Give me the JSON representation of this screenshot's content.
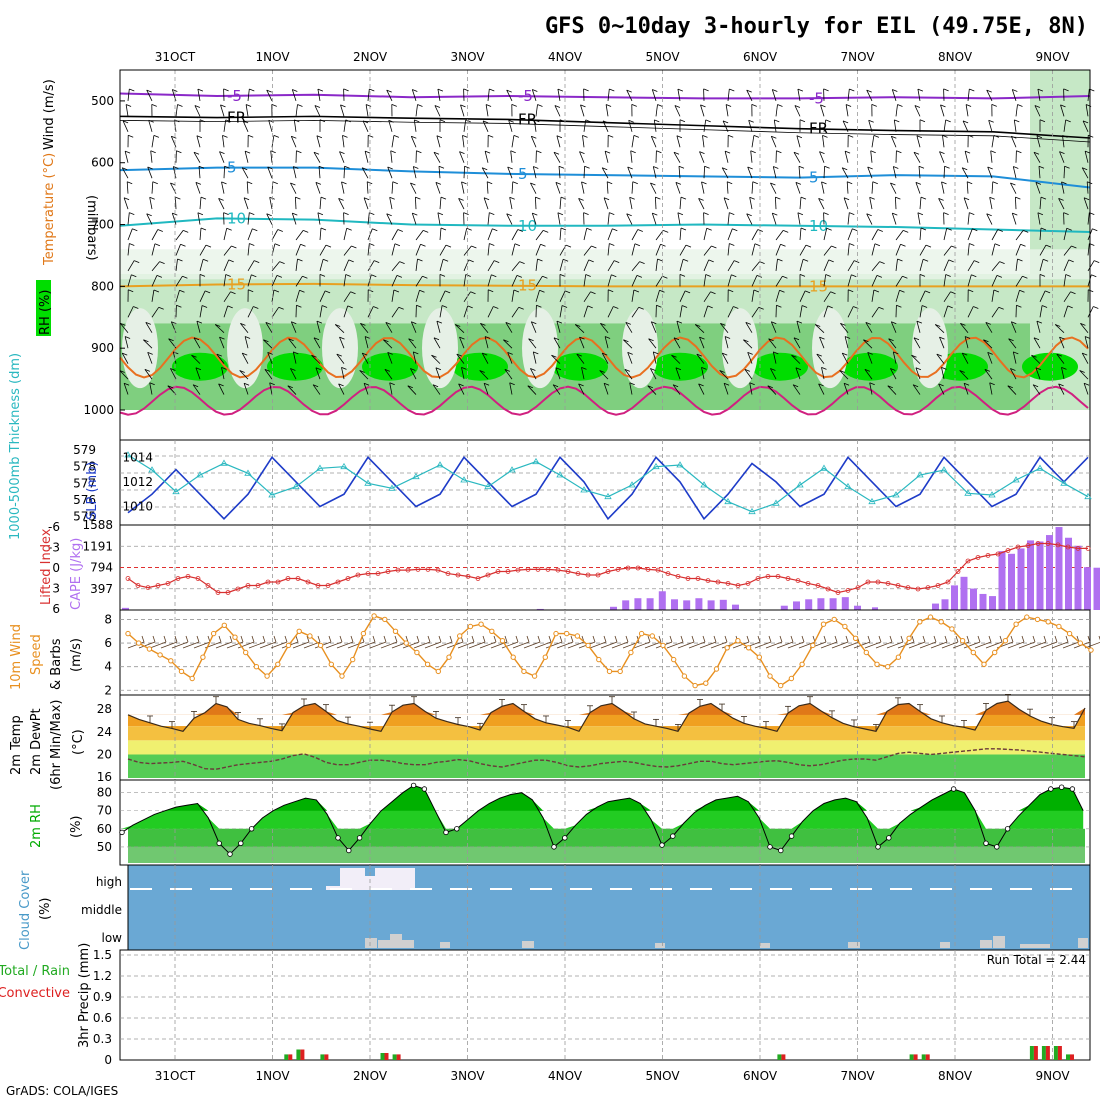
{
  "title": "GFS 0~10day 3-hourly for EIL (49.75E, 8N)",
  "footer": "GrADS: COLA/IGES",
  "dates": [
    "31OCT",
    "1NOV",
    "2NOV",
    "3NOV",
    "4NOV",
    "5NOV",
    "6NOV",
    "7NOV",
    "8NOV",
    "9NOV"
  ],
  "colors": {
    "rh_dark": "#00dd00",
    "rh_mid": "#7fcf7f",
    "rh_light": "#c6e8c6",
    "rh_pale": "#e8f4e8",
    "slp": "#1e3cc8",
    "thickness": "#2ab8c0",
    "cape": "#b070f0",
    "li": "#d83030",
    "wind": "#e89020",
    "barb": "#5a3a20",
    "temp": "#e07818",
    "dewpt": "#6a3a3a",
    "cloud": "#6aa8d4",
    "rain": "#dd2020",
    "total": "#22aa22"
  },
  "panels": {
    "upper": {
      "ylabel": "(millibars)",
      "legend": [
        "RH (%)",
        "Temperature (°C)",
        "Wind (m/s)"
      ],
      "yticks": [
        "500",
        "600",
        "700",
        "800",
        "900",
        "1000"
      ]
    },
    "slp": {
      "ylabel_left": "1000-500mb Thickness (dm)",
      "ylabel_right": "SLP (mb)",
      "thick_ticks": [
        "579",
        "578",
        "577",
        "576",
        "575"
      ],
      "slp_ticks": [
        "1014",
        "1012",
        "1010"
      ]
    },
    "cape": {
      "ylabel_left": "Lifted Index",
      "ylabel_right": "CAPE (J/kg)",
      "li_ticks": [
        "-6",
        "-3",
        "0",
        "3",
        "6"
      ],
      "cape_ticks": [
        "1588",
        "1191",
        "794",
        "397"
      ]
    },
    "wind": {
      "ylabel": [
        "10m Wind",
        "Speed",
        "& Barbs"
      ],
      "unit": "(m/s)",
      "yticks": [
        "8",
        "6",
        "4",
        "2"
      ]
    },
    "temp": {
      "ylabel": [
        "2m Temp",
        "2m DewPt",
        "(6hr Min/Max)"
      ],
      "unit": "(°C)",
      "yticks": [
        "28",
        "24",
        "20",
        "16"
      ]
    },
    "rh2m": {
      "ylabel": "2m RH",
      "unit": "(%)",
      "yticks": [
        "80",
        "70",
        "60",
        "50"
      ]
    },
    "cloud": {
      "ylabel": "Cloud Cover",
      "unit": "(%)",
      "levels": [
        "high",
        "middle",
        "low"
      ]
    },
    "precip": {
      "ylabel": "3hr Precip (mm)",
      "legend_total": "Total / Rain",
      "legend_conv": "Convective",
      "run_total": "Run Total = 2.44",
      "yticks": [
        "1.5",
        "1.2",
        "0.9",
        "0.6",
        "0.3",
        "0"
      ]
    }
  },
  "chart_data": [
    {
      "type": "line",
      "name": "upper_air_temperature_contours",
      "unit": "degC",
      "x_label": "forecast hour",
      "x": [
        0,
        24,
        48,
        72,
        96,
        120,
        144,
        168,
        192,
        216,
        240
      ],
      "series": [
        {
          "name": "-5",
          "values_hPa": [
            488,
            492,
            490,
            494,
            492,
            494,
            496,
            496,
            494,
            496,
            492
          ]
        },
        {
          "name": "FR",
          "values_hPa": [
            525,
            527,
            525,
            528,
            530,
            535,
            540,
            545,
            548,
            550,
            560
          ]
        },
        {
          "name": "5",
          "values_hPa": [
            612,
            608,
            608,
            614,
            618,
            620,
            622,
            624,
            620,
            622,
            640
          ]
        },
        {
          "name": "10",
          "values_hPa": [
            702,
            690,
            692,
            700,
            702,
            702,
            700,
            702,
            704,
            708,
            712
          ]
        },
        {
          "name": "15",
          "values_hPa": [
            800,
            797,
            796,
            798,
            799,
            800,
            800,
            800,
            800,
            800,
            800
          ]
        }
      ]
    },
    {
      "type": "line",
      "name": "slp",
      "unit": "mb",
      "x_hours": [
        0,
        6,
        12,
        18,
        24,
        30,
        36,
        42,
        48,
        54,
        60,
        66,
        72,
        78,
        84,
        90,
        96,
        102,
        108,
        114,
        120,
        126,
        132,
        138,
        144,
        150,
        156,
        162,
        168,
        174,
        180,
        186,
        192,
        198,
        204,
        210,
        216,
        222,
        228,
        234,
        240
      ],
      "values": [
        1009.5,
        1011,
        1013,
        1011,
        1009,
        1011,
        1014,
        1012,
        1010,
        1011,
        1014,
        1012,
        1010,
        1011,
        1014,
        1012,
        1010,
        1011,
        1014,
        1012,
        1009,
        1011,
        1014,
        1012,
        1009,
        1011,
        1013.5,
        1012,
        1010,
        1011,
        1014,
        1012,
        1010,
        1011,
        1014,
        1012,
        1010,
        1011,
        1014,
        1012,
        1014
      ]
    },
    {
      "type": "line",
      "name": "1000-500mb thickness",
      "unit": "dm",
      "values": [
        578.7,
        577.8,
        576.5,
        577.5,
        578.2,
        577.6,
        576.3,
        576.8,
        577.9,
        578.0,
        577.0,
        576.7,
        577.4,
        578.1,
        577.2,
        576.8,
        577.8,
        578.3,
        577.5,
        576.6,
        576.2,
        576.9,
        578.0,
        578.1,
        576.9,
        575.9,
        575.3,
        575.8,
        576.9,
        577.9,
        576.8,
        575.9,
        576.3,
        577.5,
        577.8,
        576.4,
        576.3,
        577.2,
        577.9,
        577.0,
        576.2
      ]
    },
    {
      "type": "bar",
      "name": "cape",
      "unit": "J/kg",
      "x_step_hours": 3,
      "values": [
        40,
        0,
        0,
        0,
        0,
        0,
        0,
        0,
        0,
        0,
        0,
        0,
        0,
        0,
        0,
        0,
        0,
        0,
        0,
        0,
        0,
        0,
        0,
        0,
        0,
        0,
        0,
        0,
        0,
        0,
        0,
        0,
        0,
        0,
        20,
        0,
        0,
        0,
        0,
        0,
        60,
        180,
        220,
        220,
        350,
        200,
        180,
        220,
        180,
        190,
        100,
        0,
        0,
        0,
        80,
        160,
        200,
        220,
        220,
        240,
        80,
        0,
        0,
        0,
        0,
        0,
        0,
        0,
        0,
        0,
        0,
        0,
        0,
        0,
        0,
        0,
        0,
        0,
        0,
        0,
        0,
        0,
        0,
        0,
        0,
        0,
        0,
        0,
        0,
        0,
        0,
        0,
        0,
        0,
        0,
        0,
        0,
        0,
        0,
        0,
        0,
        0,
        0,
        0,
        0,
        0,
        0,
        0,
        0,
        0,
        0,
        0,
        0,
        0,
        0,
        0,
        0,
        0,
        0,
        0,
        0,
        0,
        0,
        0,
        0,
        0,
        0,
        0,
        0,
        0,
        0,
        0,
        0,
        0,
        0,
        0,
        0,
        0,
        0,
        0,
        0,
        0,
        0,
        0,
        0,
        0,
        0,
        0,
        0,
        0,
        0,
        0,
        0,
        0,
        0,
        0,
        0,
        0,
        0,
        0,
        0,
        0,
        0,
        0,
        0,
        0,
        0,
        0,
        0,
        0,
        0,
        0,
        0,
        0,
        0,
        0,
        0,
        0,
        0,
        0,
        0,
        0,
        0,
        0,
        0,
        0,
        0,
        0,
        0,
        0,
        0,
        0,
        0,
        0,
        0,
        0,
        0,
        0,
        0,
        0,
        0,
        0,
        0,
        0,
        0,
        0,
        0,
        0,
        0,
        0,
        0,
        0,
        0,
        0,
        0,
        0,
        0,
        0,
        0,
        0,
        0,
        0,
        0,
        0,
        0,
        0,
        0,
        0,
        0,
        0,
        0,
        0,
        0,
        0,
        0,
        0,
        0
      ]
    },
    {
      "type": "line",
      "name": "lifted_index",
      "unit": "K",
      "values": [
        1.5,
        2.5,
        2.8,
        2.5,
        2.2,
        1.5,
        1.2,
        1.5,
        2.5,
        3.5,
        3.5,
        3.0,
        2.5,
        2.5,
        2.0,
        2.0,
        1.5,
        1.5,
        2.0,
        2.5,
        2.5,
        2.0,
        1.5,
        1.0,
        0.8,
        0.8,
        0.5,
        0.3,
        0.3,
        0.2,
        0.2,
        0.3,
        0.8,
        1.0,
        1.2,
        1.5,
        1.0,
        0.5,
        0.5,
        0.3,
        0.2,
        0.2,
        0.2,
        0.3,
        0.5,
        0.8,
        1.0,
        1.0,
        0.5,
        0.2,
        0.0,
        0.0,
        0.2,
        0.3,
        0.8,
        1.2,
        1.5,
        1.5,
        1.8,
        2.0,
        2.2,
        2.5,
        2.2,
        1.5,
        1.2,
        1.2,
        1.5,
        1.8,
        2.2,
        2.5,
        3.0,
        3.5,
        3.2,
        2.8,
        2.0,
        2.0,
        2.2,
        2.5,
        2.8,
        3.0,
        2.8,
        2.5,
        2.0,
        0.5,
        -1.0,
        -1.5,
        -1.8,
        -2.0,
        -2.5,
        -3.0,
        -3.2,
        -3.5,
        -3.5,
        -3.3,
        -3.0,
        -2.8,
        -2.8
      ]
    },
    {
      "type": "line",
      "name": "10m_wind_speed",
      "unit": "m/s",
      "values": [
        6.8,
        6.0,
        5.5,
        5.0,
        4.5,
        3.6,
        3.0,
        4.8,
        6.8,
        7.5,
        6.5,
        5.2,
        4.0,
        3.2,
        4.2,
        5.8,
        7.0,
        6.6,
        5.8,
        4.2,
        3.2,
        4.6,
        6.8,
        8.3,
        8.0,
        7.0,
        6.0,
        5.2,
        4.2,
        3.6,
        4.8,
        6.6,
        7.4,
        7.6,
        7.0,
        6.2,
        4.8,
        3.6,
        3.2,
        4.8,
        6.8,
        6.8,
        6.6,
        5.8,
        4.6,
        3.6,
        3.6,
        5.2,
        6.8,
        6.6,
        5.8,
        4.6,
        3.2,
        2.4,
        2.6,
        3.8,
        5.6,
        6.2,
        5.6,
        4.8,
        3.2,
        2.4,
        3.0,
        4.2,
        5.8,
        7.6,
        8.0,
        7.4,
        6.4,
        5.2,
        4.2,
        4.0,
        4.8,
        6.4,
        7.8,
        8.2,
        7.8,
        7.2,
        6.2,
        5.2,
        4.2,
        5.2,
        6.2,
        7.6,
        8.2,
        8.0,
        7.8,
        7.4,
        6.8,
        6.0,
        5.4
      ]
    },
    {
      "type": "area",
      "name": "2m_temperature",
      "unit": "degC",
      "values": [
        27.0,
        26.2,
        25.6,
        25.0,
        24.6,
        24.1,
        26.4,
        27.4,
        29.0,
        28.4,
        26.2,
        25.5,
        25.1,
        24.6,
        24.2,
        27.4,
        28.6,
        29.0,
        27.6,
        26.0,
        25.4,
        25.0,
        24.5,
        24.1,
        27.5,
        28.7,
        29.0,
        27.6,
        26.4,
        25.8,
        25.3,
        24.9,
        24.3,
        27.4,
        28.5,
        29.0,
        27.6,
        26.3,
        25.6,
        25.2,
        24.8,
        24.1,
        27.4,
        28.6,
        29.0,
        27.7,
        26.3,
        25.4,
        25.0,
        24.6,
        24.1,
        27.3,
        28.5,
        29.0,
        27.7,
        26.4,
        25.5,
        25.0,
        24.6,
        24.1,
        27.3,
        28.6,
        29.0,
        27.7,
        26.5,
        25.5,
        24.9,
        24.5,
        24.1,
        27.6,
        28.8,
        29.0,
        27.6,
        26.3,
        25.6,
        25.1,
        24.8,
        24.3,
        27.8,
        29.0,
        29.4,
        28.0,
        26.8,
        25.9,
        25.3,
        24.9,
        24.6,
        28.2
      ]
    },
    {
      "type": "line",
      "name": "2m_dewpoint",
      "unit": "degC",
      "values": [
        19.2,
        18.6,
        18.4,
        18.5,
        18.6,
        18.8,
        18.2,
        17.5,
        17.4,
        17.8,
        18.2,
        18.4,
        18.6,
        18.8,
        19.2,
        19.8,
        20.1,
        19.5,
        18.6,
        18.2,
        18.2,
        18.6,
        19.0,
        19.0,
        18.8,
        18.4,
        18.2,
        18.2,
        18.6,
        18.8,
        19.1,
        18.9,
        18.4,
        18.0,
        17.8,
        18.2,
        18.6,
        19.0,
        19.0,
        18.6,
        18.0,
        17.8,
        18.0,
        18.4,
        18.6,
        18.8,
        18.6,
        18.2,
        17.9,
        17.8,
        18.0,
        18.4,
        18.8,
        18.8,
        18.4,
        18.2,
        18.4,
        18.6,
        18.8,
        18.9,
        18.6,
        18.2,
        18.0,
        18.2,
        18.6,
        19.0,
        19.2,
        19.2,
        19.0,
        19.6,
        20.2,
        20.4,
        20.2,
        20.0,
        20.2,
        20.4,
        20.6,
        20.8,
        21.0,
        21.0,
        20.9,
        20.8,
        20.6,
        20.4,
        20.2,
        20.0,
        19.8,
        19.6
      ]
    },
    {
      "type": "area",
      "name": "2m_relative_humidity",
      "unit": "%",
      "values": [
        58,
        62,
        65,
        68,
        70,
        72,
        73,
        74,
        66,
        52,
        46,
        52,
        60,
        66,
        70,
        73,
        75,
        77,
        76,
        68,
        55,
        48,
        55,
        63,
        70,
        75,
        80,
        84,
        82,
        70,
        58,
        60,
        65,
        70,
        74,
        77,
        79,
        80,
        76,
        66,
        50,
        55,
        62,
        68,
        72,
        75,
        76,
        77,
        74,
        65,
        51,
        56,
        63,
        69,
        73,
        76,
        77,
        78,
        75,
        66,
        50,
        48,
        56,
        64,
        70,
        74,
        76,
        77,
        75,
        66,
        50,
        55,
        63,
        68,
        72,
        76,
        79,
        82,
        80,
        70,
        52,
        50,
        60,
        67,
        73,
        79,
        82,
        83,
        82,
        70
      ]
    },
    {
      "type": "bar",
      "name": "cloud_cover",
      "unit": "%",
      "levels": [
        "high",
        "middle",
        "low"
      ],
      "note": "blue background = clear; white/grey blocks = cloud fraction at each level"
    },
    {
      "type": "bar",
      "name": "3hr_precip",
      "unit": "mm",
      "run_total": 2.44,
      "events": [
        {
          "hour": 39,
          "total": 0.08,
          "convective": 0.08
        },
        {
          "hour": 42,
          "total": 0.15,
          "convective": 0.15
        },
        {
          "hour": 48,
          "total": 0.08,
          "convective": 0.08
        },
        {
          "hour": 63,
          "total": 0.1,
          "convective": 0.1
        },
        {
          "hour": 66,
          "total": 0.08,
          "convective": 0.08
        },
        {
          "hour": 162,
          "total": 0.08,
          "convective": 0.08
        },
        {
          "hour": 195,
          "total": 0.08,
          "convective": 0.08
        },
        {
          "hour": 198,
          "total": 0.08,
          "convective": 0.08
        },
        {
          "hour": 225,
          "total": 0.2,
          "convective": 0.2
        },
        {
          "hour": 228,
          "total": 0.2,
          "convective": 0.2
        },
        {
          "hour": 231,
          "total": 0.2,
          "convective": 0.2
        },
        {
          "hour": 234,
          "total": 0.08,
          "convective": 0.08
        }
      ]
    }
  ]
}
